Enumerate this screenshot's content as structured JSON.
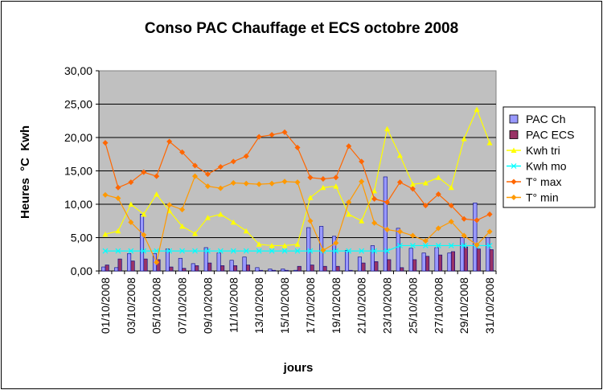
{
  "chart_data": {
    "type": "bar",
    "title": "Conso PAC Chauffage et ECS octobre 2008",
    "xlabel": "jours",
    "ylabel": "Heures  °C  Kwh",
    "ylim": [
      0,
      30
    ],
    "yticks": [
      "0,00",
      "5,00",
      "10,00",
      "15,00",
      "20,00",
      "25,00",
      "30,00"
    ],
    "grid": true,
    "legend_position": "right",
    "x": [
      "01/10/2008",
      "02/10/2008",
      "03/10/2008",
      "04/10/2008",
      "05/10/2008",
      "06/10/2008",
      "07/10/2008",
      "08/10/2008",
      "09/10/2008",
      "10/10/2008",
      "11/10/2008",
      "12/10/2008",
      "13/10/2008",
      "14/10/2008",
      "15/10/2008",
      "16/10/2008",
      "17/10/2008",
      "18/10/2008",
      "19/10/2008",
      "20/10/2008",
      "21/10/2008",
      "22/10/2008",
      "23/10/2008",
      "24/10/2008",
      "25/10/2008",
      "26/10/2008",
      "27/10/2008",
      "28/10/2008",
      "29/10/2008",
      "30/10/2008",
      "31/10/2008"
    ],
    "xticks_shown": [
      "01/10/2008",
      "03/10/2008",
      "05/10/2008",
      "07/10/2008",
      "09/10/2008",
      "11/10/2008",
      "13/10/2008",
      "15/10/2008",
      "17/10/2008",
      "19/10/2008",
      "21/10/2008",
      "23/10/2008",
      "25/10/2008",
      "27/10/2008",
      "29/10/2008",
      "31/10/2008"
    ],
    "series": [
      {
        "name": "PAC Ch",
        "kind": "bar",
        "color": "#9999ff",
        "values": [
          0.6,
          0.5,
          2.6,
          8.5,
          2.6,
          3.3,
          1.9,
          1.1,
          3.5,
          2.7,
          1.6,
          2.1,
          0.5,
          0.3,
          0.3,
          0.1,
          6.5,
          6.7,
          5.2,
          3.1,
          2.1,
          3.8,
          14.1,
          6.4,
          3.4,
          2.7,
          3.5,
          2.7,
          5.0,
          10.2,
          5.0
        ]
      },
      {
        "name": "PAC ECS",
        "kind": "bar",
        "color": "#993366",
        "values": [
          0.9,
          1.8,
          1.5,
          1.8,
          1.7,
          0.6,
          0.4,
          0.8,
          1.2,
          0.8,
          0.8,
          0.9,
          0.1,
          0.1,
          0.1,
          0.7,
          0.9,
          0.7,
          0.7,
          0.1,
          1.2,
          1.4,
          1.7,
          0.5,
          1.7,
          2.2,
          2.4,
          2.9,
          3.6,
          3.3,
          3.2
        ]
      },
      {
        "name": "Kwh tri",
        "kind": "line",
        "color": "#ffff00",
        "values": [
          5.5,
          6.0,
          10.0,
          8.5,
          11.5,
          9.0,
          6.7,
          5.6,
          8.0,
          8.5,
          7.3,
          6.0,
          4.0,
          3.8,
          3.8,
          4.0,
          11.0,
          12.5,
          12.7,
          8.5,
          7.5,
          12.0,
          21.3,
          17.3,
          13.0,
          13.2,
          14.0,
          12.5,
          19.8,
          24.2,
          19.2
        ]
      },
      {
        "name": "Kwh mo",
        "kind": "line",
        "color": "#00ffff",
        "values": [
          3.0,
          3.0,
          3.0,
          3.0,
          3.0,
          3.0,
          3.0,
          3.0,
          3.0,
          3.0,
          3.0,
          3.0,
          3.0,
          3.0,
          3.0,
          3.0,
          3.0,
          3.0,
          3.0,
          3.0,
          3.0,
          3.0,
          3.0,
          3.8,
          3.8,
          3.8,
          3.8,
          3.8,
          3.8,
          3.8,
          3.8
        ]
      },
      {
        "name": "T° max",
        "kind": "line",
        "color": "#ff6600",
        "values": [
          19.2,
          12.5,
          13.3,
          14.8,
          14.2,
          19.4,
          17.8,
          15.8,
          14.5,
          15.6,
          16.4,
          17.2,
          20.1,
          20.4,
          20.8,
          18.5,
          14.0,
          13.8,
          14.0,
          18.7,
          16.4,
          10.8,
          10.3,
          13.3,
          12.3,
          9.8,
          11.5,
          9.8,
          7.8,
          7.6,
          8.5
        ]
      },
      {
        "name": "T° min",
        "kind": "line",
        "color": "#ff9900",
        "values": [
          11.4,
          10.9,
          7.3,
          5.4,
          1.3,
          9.9,
          9.2,
          14.2,
          12.7,
          12.4,
          13.2,
          13.1,
          13.0,
          13.1,
          13.4,
          13.3,
          7.5,
          3.1,
          4.2,
          10.3,
          13.4,
          7.2,
          6.2,
          5.9,
          5.3,
          4.5,
          6.4,
          7.4,
          5.3,
          3.9,
          5.9
        ]
      }
    ]
  }
}
